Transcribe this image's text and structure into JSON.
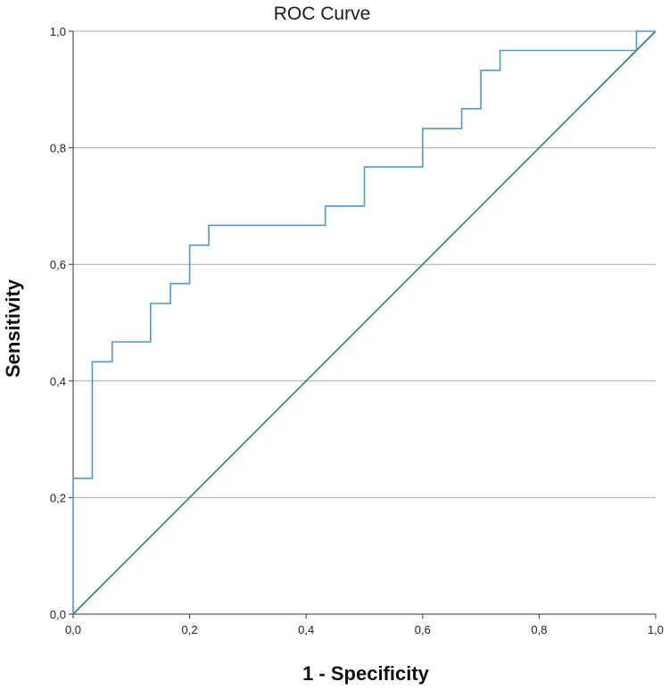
{
  "chart_data": {
    "type": "line",
    "title": "ROC Curve",
    "xlabel": "1 - Specificity",
    "ylabel": "Sensitivity",
    "xlim": [
      0,
      1
    ],
    "ylim": [
      0,
      1
    ],
    "x_ticks": [
      "0,0",
      "0,2",
      "0,4",
      "0,6",
      "0,8",
      "1,0"
    ],
    "y_ticks": [
      "0,0",
      "0,2",
      "0,4",
      "0,6",
      "0,8",
      "1,0"
    ],
    "x_tick_values": [
      0,
      0.2,
      0.4,
      0.6,
      0.8,
      1.0
    ],
    "y_tick_values": [
      0,
      0.2,
      0.4,
      0.6,
      0.8,
      1.0
    ],
    "grid": "horizontal",
    "series": [
      {
        "name": "ROC curve",
        "color": "#4a9ad8",
        "step": true,
        "x": [
          0.0,
          0.0,
          0.033,
          0.033,
          0.067,
          0.067,
          0.133,
          0.133,
          0.167,
          0.167,
          0.2,
          0.2,
          0.233,
          0.233,
          0.433,
          0.433,
          0.5,
          0.5,
          0.6,
          0.6,
          0.667,
          0.667,
          0.7,
          0.7,
          0.733,
          0.733,
          0.967,
          0.967,
          1.0
        ],
        "y": [
          0.0,
          0.233,
          0.233,
          0.433,
          0.433,
          0.467,
          0.467,
          0.533,
          0.533,
          0.567,
          0.567,
          0.633,
          0.633,
          0.667,
          0.667,
          0.7,
          0.7,
          0.767,
          0.767,
          0.833,
          0.833,
          0.867,
          0.867,
          0.933,
          0.933,
          0.967,
          0.967,
          1.0,
          1.0
        ]
      },
      {
        "name": "Reference line",
        "color": "#2e7b7b",
        "x": [
          0,
          1
        ],
        "y": [
          0,
          1
        ]
      }
    ]
  }
}
